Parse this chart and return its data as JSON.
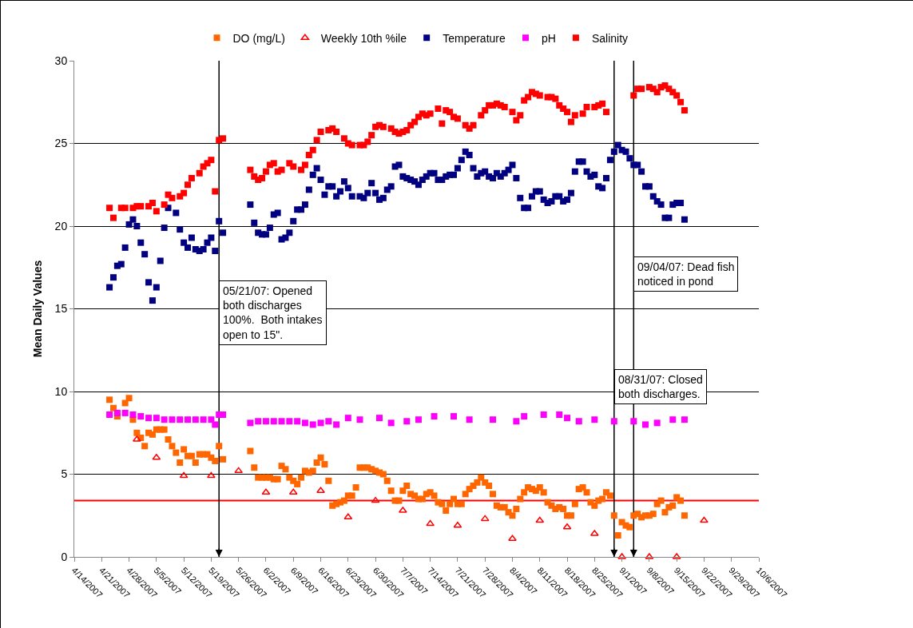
{
  "chart_data": {
    "type": "scatter",
    "ylabel": "Mean Daily Values",
    "legend": "top",
    "grid": "y",
    "ylim": [
      0,
      30
    ],
    "yticks": [
      0,
      5,
      10,
      15,
      20,
      25,
      30
    ],
    "xlim": [
      "2007-04-14",
      "2007-10-06"
    ],
    "xticks": [
      {
        "value": "2007-04-14",
        "label": "4/14/2007"
      },
      {
        "value": "2007-04-21",
        "label": "4/21/2007"
      },
      {
        "value": "2007-04-28",
        "label": "4/28/2007"
      },
      {
        "value": "2007-05-05",
        "label": "5/5/2007"
      },
      {
        "value": "2007-05-12",
        "label": "5/12/2007"
      },
      {
        "value": "2007-05-19",
        "label": "5/19/2007"
      },
      {
        "value": "2007-05-26",
        "label": "5/26/2007"
      },
      {
        "value": "2007-06-02",
        "label": "6/2/2007"
      },
      {
        "value": "2007-06-09",
        "label": "6/9/2007"
      },
      {
        "value": "2007-06-16",
        "label": "6/16/2007"
      },
      {
        "value": "2007-06-23",
        "label": "6/23/2007"
      },
      {
        "value": "2007-06-30",
        "label": "6/30/2007"
      },
      {
        "value": "2007-07-07",
        "label": "7/7/2007"
      },
      {
        "value": "2007-07-14",
        "label": "7/14/2007"
      },
      {
        "value": "2007-07-21",
        "label": "7/21/2007"
      },
      {
        "value": "2007-07-28",
        "label": "7/28/2007"
      },
      {
        "value": "2007-08-04",
        "label": "8/4/2007"
      },
      {
        "value": "2007-08-11",
        "label": "8/11/2007"
      },
      {
        "value": "2007-08-18",
        "label": "8/18/2007"
      },
      {
        "value": "2007-08-25",
        "label": "8/25/2007"
      },
      {
        "value": "2007-09-01",
        "label": "9/1/2007"
      },
      {
        "value": "2007-09-08",
        "label": "9/8/2007"
      },
      {
        "value": "2007-09-15",
        "label": "9/15/2007"
      },
      {
        "value": "2007-09-22",
        "label": "9/22/2007"
      },
      {
        "value": "2007-09-29",
        "label": "9/29/2007"
      },
      {
        "value": "2007-10-06",
        "label": "10/6/2007"
      }
    ],
    "x": [
      "2007-04-23",
      "2007-04-24",
      "2007-04-25",
      "2007-04-26",
      "2007-04-27",
      "2007-04-28",
      "2007-04-29",
      "2007-04-30",
      "2007-05-01",
      "2007-05-02",
      "2007-05-03",
      "2007-05-04",
      "2007-05-05",
      "2007-05-06",
      "2007-05-07",
      "2007-05-08",
      "2007-05-09",
      "2007-05-10",
      "2007-05-11",
      "2007-05-12",
      "2007-05-13",
      "2007-05-14",
      "2007-05-15",
      "2007-05-16",
      "2007-05-17",
      "2007-05-18",
      "2007-05-19",
      "2007-05-20",
      "2007-05-21",
      "2007-05-22",
      "2007-05-23",
      "2007-05-24",
      "2007-05-25",
      "2007-05-26",
      "2007-05-27",
      "2007-05-28",
      "2007-05-29",
      "2007-05-30",
      "2007-05-31",
      "2007-06-01",
      "2007-06-02",
      "2007-06-03",
      "2007-06-04",
      "2007-06-05",
      "2007-06-06",
      "2007-06-07",
      "2007-06-08",
      "2007-06-09",
      "2007-06-10",
      "2007-06-11",
      "2007-06-12",
      "2007-06-13",
      "2007-06-14",
      "2007-06-15",
      "2007-06-16",
      "2007-06-17",
      "2007-06-18",
      "2007-06-19",
      "2007-06-20",
      "2007-06-21",
      "2007-06-22",
      "2007-06-23",
      "2007-06-24",
      "2007-06-25",
      "2007-06-26",
      "2007-06-27",
      "2007-06-28",
      "2007-06-29",
      "2007-06-30",
      "2007-07-01",
      "2007-07-02",
      "2007-07-03",
      "2007-07-04",
      "2007-07-05",
      "2007-07-06",
      "2007-07-07",
      "2007-07-08",
      "2007-07-09",
      "2007-07-10",
      "2007-07-11",
      "2007-07-12",
      "2007-07-13",
      "2007-07-14",
      "2007-07-15",
      "2007-07-16",
      "2007-07-17",
      "2007-07-18",
      "2007-07-19",
      "2007-07-20",
      "2007-07-21",
      "2007-07-22",
      "2007-07-23",
      "2007-07-24",
      "2007-07-25",
      "2007-07-26",
      "2007-07-27",
      "2007-07-28",
      "2007-07-29",
      "2007-07-30",
      "2007-07-31",
      "2007-08-01",
      "2007-08-02",
      "2007-08-03",
      "2007-08-04",
      "2007-08-05",
      "2007-08-06",
      "2007-08-07",
      "2007-08-08",
      "2007-08-09",
      "2007-08-10",
      "2007-08-11",
      "2007-08-12",
      "2007-08-13",
      "2007-08-14",
      "2007-08-15",
      "2007-08-16",
      "2007-08-17",
      "2007-08-18",
      "2007-08-19",
      "2007-08-20",
      "2007-08-21",
      "2007-08-22",
      "2007-08-23",
      "2007-08-24",
      "2007-08-25",
      "2007-08-26",
      "2007-08-27",
      "2007-08-28",
      "2007-08-29",
      "2007-08-30",
      "2007-08-31",
      "2007-09-01",
      "2007-09-02",
      "2007-09-03",
      "2007-09-04",
      "2007-09-05",
      "2007-09-06",
      "2007-09-07",
      "2007-09-08",
      "2007-09-09",
      "2007-09-10",
      "2007-09-11",
      "2007-09-12",
      "2007-09-13",
      "2007-09-14",
      "2007-09-15",
      "2007-09-16",
      "2007-09-17"
    ],
    "series": [
      {
        "name": "DO (mg/L)",
        "color": "#ff6600",
        "marker": "square",
        "values": [
          9.5,
          9.0,
          8.5,
          null,
          9.3,
          9.6,
          8.3,
          7.5,
          7.2,
          6.7,
          7.5,
          7.4,
          7.7,
          7.7,
          7.7,
          7.1,
          6.7,
          6.3,
          5.7,
          6.5,
          6.1,
          6.1,
          5.7,
          6.2,
          6.2,
          6.2,
          6.0,
          5.8,
          6.7,
          5.9,
          null,
          null,
          null,
          null,
          null,
          null,
          6.4,
          5.4,
          4.8,
          4.8,
          4.8,
          4.8,
          4.7,
          4.7,
          5.5,
          5.3,
          4.8,
          4.6,
          4.4,
          4.8,
          5.2,
          5.1,
          5.2,
          5.7,
          6.0,
          5.6,
          4.6,
          3.1,
          3.2,
          3.3,
          3.4,
          3.7,
          3.7,
          4.2,
          5.4,
          5.4,
          5.4,
          5.3,
          5.2,
          5.1,
          5.0,
          4.6,
          4.0,
          3.4,
          3.4,
          4.0,
          4.3,
          3.8,
          3.7,
          3.5,
          3.5,
          3.8,
          3.9,
          3.7,
          3.3,
          3.2,
          2.8,
          3.2,
          3.5,
          3.2,
          3.2,
          3.8,
          4.1,
          4.3,
          4.5,
          4.8,
          4.5,
          4.3,
          3.8,
          3.1,
          3.0,
          3.0,
          2.7,
          2.5,
          2.9,
          3.5,
          3.9,
          4.2,
          4.1,
          4.0,
          4.2,
          3.9,
          3.3,
          3.1,
          2.9,
          3.0,
          2.9,
          2.5,
          2.5,
          3.2,
          4.1,
          4.2,
          3.9,
          3.3,
          3.1,
          3.4,
          3.5,
          3.9,
          3.7,
          2.5,
          1.3,
          2.1,
          1.9,
          1.8,
          2.5,
          2.6,
          2.4,
          2.5,
          2.5,
          2.6,
          3.2,
          3.4,
          2.7,
          3.0,
          3.1,
          3.6,
          3.4,
          2.5
        ]
      },
      {
        "name": "Weekly 10th %ile",
        "color": "#ff0000",
        "marker": "triangle",
        "x": [
          "2007-04-30",
          "2007-05-05",
          "2007-05-12",
          "2007-05-19",
          "2007-05-26",
          "2007-06-02",
          "2007-06-09",
          "2007-06-16",
          "2007-06-23",
          "2007-06-30",
          "2007-07-07",
          "2007-07-14",
          "2007-07-21",
          "2007-07-28",
          "2007-08-04",
          "2007-08-11",
          "2007-08-18",
          "2007-08-25",
          "2007-09-01",
          "2007-09-08",
          "2007-09-15",
          "2007-09-22"
        ],
        "values": [
          7.1,
          6.0,
          4.9,
          4.9,
          5.2,
          3.9,
          3.9,
          4.0,
          2.4,
          3.4,
          2.8,
          2.0,
          1.9,
          2.3,
          1.1,
          2.2,
          1.8,
          1.4,
          0,
          0,
          0,
          2.2
        ]
      },
      {
        "name": "Temperature",
        "color": "#000080",
        "marker": "square",
        "values": [
          16.3,
          16.9,
          17.6,
          17.7,
          18.7,
          20.1,
          20.4,
          20.0,
          19.0,
          18.3,
          16.6,
          15.5,
          16.3,
          17.9,
          19.9,
          21.1,
          null,
          20.8,
          19.8,
          19.0,
          18.7,
          19.3,
          18.6,
          18.5,
          18.6,
          19.0,
          19.3,
          18.5,
          20.3,
          19.6,
          null,
          null,
          null,
          null,
          null,
          null,
          21.3,
          20.2,
          19.6,
          19.5,
          19.5,
          19.9,
          20.7,
          20.8,
          19.2,
          19.3,
          19.6,
          20.3,
          21.0,
          21.0,
          21.3,
          22.2,
          23.1,
          23.5,
          22.8,
          21.9,
          22.4,
          22.4,
          21.8,
          22.1,
          22.7,
          22.3,
          21.8,
          null,
          21.8,
          21.7,
          22.0,
          22.6,
          22.0,
          21.6,
          21.7,
          22.2,
          22.4,
          23.6,
          23.7,
          23.0,
          22.9,
          22.8,
          22.7,
          22.5,
          22.8,
          23.0,
          23.2,
          23.2,
          22.8,
          22.8,
          23.0,
          23.1,
          23.1,
          23.5,
          24.0,
          24.5,
          24.3,
          23.5,
          23.0,
          23.2,
          23.3,
          23.0,
          22.9,
          23.2,
          23.0,
          23.2,
          23.4,
          23.7,
          22.9,
          21.7,
          21.1,
          21.1,
          21.8,
          22.1,
          22.1,
          21.6,
          21.4,
          21.5,
          21.8,
          21.8,
          21.5,
          21.6,
          22.0,
          23.3,
          23.9,
          23.9,
          23.3,
          23.0,
          23.1,
          22.4,
          22.3,
          22.9,
          24.0,
          24.5,
          24.9,
          24.6,
          24.5,
          24.1,
          23.7,
          23.7,
          23.3,
          22.4,
          22.4,
          21.8,
          21.5,
          21.3,
          20.5,
          20.5,
          21.3,
          21.4,
          21.4,
          20.4
        ]
      },
      {
        "name": "pH",
        "color": "#ff00ff",
        "marker": "square",
        "values": [
          8.6,
          null,
          8.7,
          null,
          8.7,
          null,
          8.6,
          null,
          8.5,
          null,
          8.4,
          null,
          8.4,
          null,
          8.3,
          null,
          8.3,
          null,
          8.3,
          null,
          8.3,
          null,
          8.3,
          null,
          8.3,
          null,
          8.3,
          8.0,
          8.6,
          8.6,
          null,
          null,
          null,
          null,
          null,
          null,
          8.1,
          null,
          8.2,
          null,
          8.2,
          null,
          8.2,
          null,
          8.2,
          null,
          8.2,
          null,
          8.2,
          null,
          8.1,
          null,
          8.0,
          null,
          8.1,
          null,
          8.2,
          null,
          8.0,
          null,
          null,
          8.4,
          null,
          null,
          8.3,
          null,
          null,
          null,
          null,
          8.4,
          null,
          null,
          8.1,
          null,
          null,
          null,
          8.2,
          null,
          null,
          8.3,
          null,
          null,
          null,
          8.5,
          null,
          null,
          null,
          null,
          8.5,
          null,
          null,
          null,
          8.3,
          null,
          null,
          null,
          null,
          null,
          8.3,
          null,
          null,
          null,
          null,
          null,
          8.2,
          null,
          8.5,
          null,
          null,
          null,
          null,
          8.6,
          null,
          null,
          null,
          8.6,
          null,
          8.4,
          null,
          null,
          8.2,
          null,
          null,
          null,
          8.3,
          null,
          null,
          null,
          null,
          8.2,
          null,
          null,
          null,
          null,
          8.2,
          null,
          null,
          8.0,
          null,
          null,
          8.1,
          null,
          null,
          null,
          8.3,
          null,
          null,
          8.3
        ]
      },
      {
        "name": "Salinity",
        "color": "#ff0000",
        "marker": "square",
        "values": [
          21.1,
          20.5,
          null,
          21.1,
          21.1,
          null,
          21.1,
          21.2,
          21.2,
          null,
          21.2,
          21.4,
          20.9,
          null,
          21.3,
          21.9,
          21.7,
          null,
          21.8,
          22.0,
          22.5,
          22.9,
          null,
          23.2,
          23.6,
          23.8,
          24.0,
          22.1,
          25.2,
          25.3,
          null,
          null,
          null,
          null,
          null,
          null,
          23.4,
          23.0,
          22.8,
          22.9,
          23.3,
          23.7,
          23.8,
          23.3,
          23.4,
          null,
          23.8,
          23.6,
          null,
          23.4,
          23.7,
          24.3,
          24.6,
          25.2,
          25.7,
          null,
          25.8,
          25.9,
          25.7,
          null,
          25.3,
          25.0,
          24.9,
          null,
          24.9,
          24.9,
          25.1,
          25.5,
          26.0,
          26.1,
          26.0,
          null,
          25.9,
          25.7,
          25.6,
          25.7,
          25.8,
          26.1,
          26.3,
          26.6,
          26.8,
          26.7,
          26.8,
          null,
          27.1,
          26.2,
          27.0,
          26.9,
          26.6,
          26.5,
          null,
          26.1,
          25.9,
          26.1,
          null,
          26.7,
          27.0,
          27.3,
          27.3,
          27.4,
          27.3,
          27.2,
          null,
          26.9,
          26.4,
          26.7,
          27.6,
          27.8,
          28.1,
          28.0,
          27.9,
          null,
          27.8,
          27.8,
          27.7,
          27.3,
          27.1,
          26.9,
          26.3,
          26.7,
          null,
          26.8,
          27.2,
          null,
          27.2,
          27.3,
          27.4,
          26.9,
          null,
          null,
          null,
          null,
          null,
          null,
          27.9,
          28.3,
          28.3,
          null,
          28.4,
          28.3,
          28.1,
          28.4,
          28.5,
          28.3,
          28.1,
          27.9,
          27.5,
          27.0
        ]
      }
    ],
    "ref_lines": [
      {
        "axis": "x",
        "value": "2007-05-21",
        "label": "05/21/07: Opened\nboth discharges\n100%.  Both intakes\nopen to 15\".",
        "color": "#000000"
      },
      {
        "axis": "x",
        "value": "2007-08-30",
        "label": "08/31/07: Closed\nboth discharges.",
        "color": "#000000"
      },
      {
        "axis": "x",
        "value": "2007-09-04",
        "label": "09/04/07: Dead fish\nnoticed in pond",
        "color": "#000000"
      },
      {
        "axis": "y",
        "value": 3.4,
        "color": "#ff0000",
        "line_style": "solid"
      }
    ]
  }
}
